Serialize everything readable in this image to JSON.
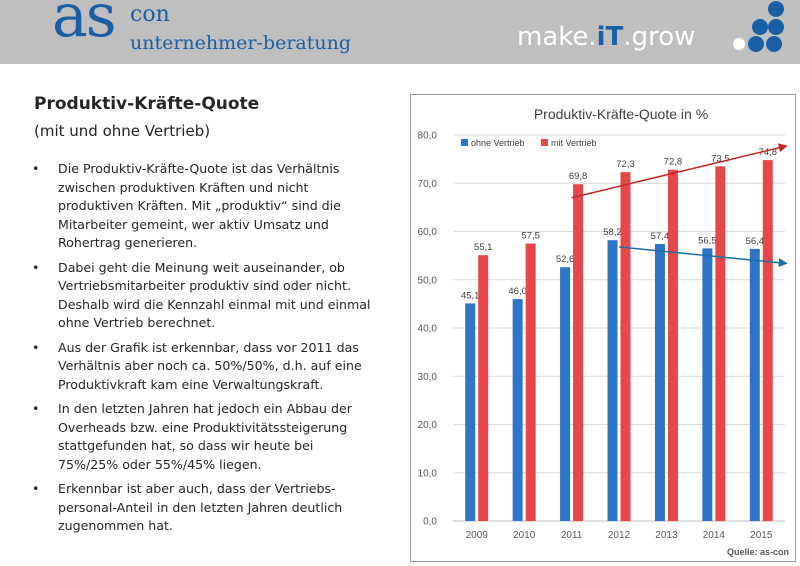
{
  "header": {
    "logo_as": "as",
    "logo_con": "con",
    "logo_sub": "unternehmer-beratung",
    "slogan_left": "make.",
    "slogan_mid": "iT",
    "slogan_right": ".grow",
    "accent_color": "#1a5fa6"
  },
  "slide": {
    "title": "Produktiv-Kräfte-Quote",
    "subtitle": "(mit und ohne Vertrieb)",
    "bullets": [
      "Die Produktiv-Kräfte-Quote ist das Verhältnis zwischen produktiven Kräften und nicht produktiven Kräften. Mit „produktiv“ sind die Mitarbeiter gemeint, wer aktiv Umsatz und Rohertrag generieren.",
      "Dabei geht die Meinung weit auseinander, ob Vertriebsmitarbeiter produktiv sind oder nicht. Deshalb wird die Kennzahl einmal mit und einmal ohne Vertrieb berechnet.",
      "Aus der Grafik ist erkennbar, dass vor 2011 das Verhältnis aber noch ca. 50%/50%, d.h. auf eine Produktivkraft kam eine Verwaltungskraft.",
      "In den letzten Jahren hat jedoch ein Abbau der Overheads bzw. eine Produktivitätssteigerung stattgefunden hat, so dass wir heute bei 75%/25% oder 55%/45% liegen.",
      "Erkennbar ist aber auch, dass der Vertriebs-personal-Anteil in den letzten Jahren deutlich zugenommen hat."
    ]
  },
  "chart_data": {
    "type": "bar",
    "title": "Produktiv-Kräfte-Quote in %",
    "categories": [
      "2009",
      "2010",
      "2011",
      "2012",
      "2013",
      "2014",
      "2015"
    ],
    "series": [
      {
        "name": "ohne Vertrieb",
        "color": "#2e75c8",
        "values": [
          45.1,
          46.0,
          52.6,
          58.2,
          57.4,
          56.5,
          56.4
        ],
        "labels": [
          "45,1",
          "46,0",
          "52,6",
          "58,2",
          "57,4",
          "56,5",
          "56,4"
        ]
      },
      {
        "name": "mit Vertrieb",
        "color": "#e8474a",
        "values": [
          55.1,
          57.5,
          69.8,
          72.3,
          72.8,
          73.5,
          74.8
        ],
        "labels": [
          "55,1",
          "57,5",
          "69,8",
          "72,3",
          "72,8",
          "73,5",
          "74,8"
        ]
      }
    ],
    "ylim": [
      0,
      80
    ],
    "yticks": [
      0,
      10,
      20,
      30,
      40,
      50,
      60,
      70,
      80
    ],
    "ytick_labels": [
      "0,0",
      "10,0",
      "20,0",
      "30,0",
      "40,0",
      "50,0",
      "60,0",
      "70,0",
      "80,0"
    ],
    "grid": true,
    "legend": "top-left",
    "source": "Quelle: as-con",
    "trend_arrows": [
      {
        "series": "mit Vertrieb",
        "color": "#c62828",
        "from": [
          2011,
          67.0
        ],
        "to": [
          2015,
          77.7
        ]
      },
      {
        "series": "ohne Vertrieb",
        "color": "#1b6fa8",
        "from": [
          2012,
          56.8
        ],
        "to": [
          2015,
          53.4
        ]
      }
    ]
  }
}
